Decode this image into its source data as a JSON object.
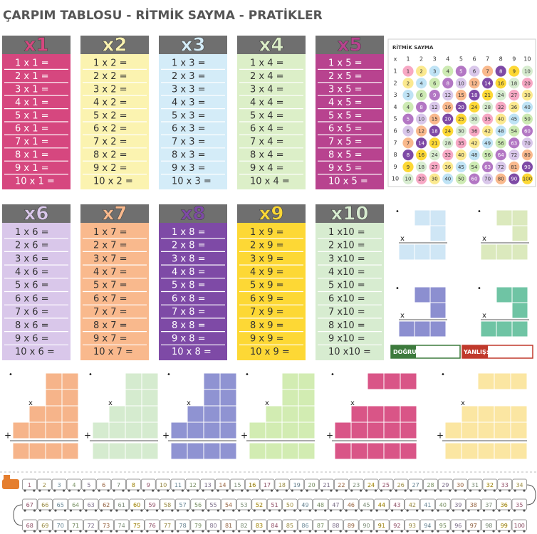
{
  "title": "ÇARPIM TABLOSU - RİTMİK SAYMA - PRATİKLER",
  "tables": [
    {
      "header": "x1",
      "rows": [
        "1 x 1 =",
        "2 x 1 =",
        "3 x 1 =",
        "4 x 1 =",
        "5 x 1 =",
        "6 x 1 =",
        "7 x 1 =",
        "8 x 1 =",
        "9 x 1 =",
        "10 x 1 ="
      ]
    },
    {
      "header": "x2",
      "rows": [
        "1 x 2 =",
        "2 x 2 =",
        "3 x 2 =",
        "4 x 2 =",
        "5 x 2 =",
        "6 x 2 =",
        "7 x 2 =",
        "8 x 2 =",
        "9 x 2 =",
        "10 x 2 ="
      ]
    },
    {
      "header": "x3",
      "rows": [
        "1 x 3 =",
        "2 x 3 =",
        "3 x 3 =",
        "4 x 3 =",
        "5 x 3 =",
        "6 x 3 =",
        "7 x 3 =",
        "8 x 3 =",
        "9 x 3 =",
        "10 x 3 ="
      ]
    },
    {
      "header": "x4",
      "rows": [
        "1 x 4 =",
        "2 x 4 =",
        "3 x 4 =",
        "4 x 4 =",
        "5 x 4 =",
        "6 x 4 =",
        "7 x 4 =",
        "8 x 4 =",
        "9 x 4 =",
        "10 x 4 ="
      ]
    },
    {
      "header": "x5",
      "rows": [
        "1 x 5 =",
        "2 x 5 =",
        "3 x 5 =",
        "4 x 5 =",
        "5 x 5 =",
        "6 x 5 =",
        "7 x 5 =",
        "8 x 5 =",
        "9 x 5 =",
        "10 x 5 ="
      ]
    },
    {
      "header": "x6",
      "rows": [
        "1 x 6 =",
        "2 x 6 =",
        "3 x 6 =",
        "4 x 6 =",
        "5 x 6 =",
        "6 x 6 =",
        "7 x 6 =",
        "8 x 6 =",
        "9 x 6 =",
        "10 x 6 ="
      ]
    },
    {
      "header": "x7",
      "rows": [
        "1 x 7 =",
        "2 x 7 =",
        "3 x 7 =",
        "4 x 7 =",
        "5 x 7 =",
        "6 x 7 =",
        "7 x 7 =",
        "8 x 7 =",
        "9 x 7 =",
        "10 x 7 ="
      ]
    },
    {
      "header": "x8",
      "rows": [
        "1 x 8 =",
        "2 x 8 =",
        "3 x 8 =",
        "4 x 8 =",
        "5 x 8 =",
        "6 x 8 =",
        "7 x 8 =",
        "8 x 8 =",
        "9 x 8 =",
        "10 x 8 ="
      ]
    },
    {
      "header": "x9",
      "rows": [
        "1 x 9 =",
        "2 x 9 =",
        "3 x 9 =",
        "4 x 9 =",
        "5 x 9 =",
        "6 x 9 =",
        "7 x 9 =",
        "8 x 9 =",
        "9 x 9 =",
        "10 x 9 ="
      ]
    },
    {
      "header": "x10",
      "rows": [
        "1 x10 =",
        "2 x10 =",
        "3 x10 =",
        "4 x10 =",
        "5 x10 =",
        "6 x10 =",
        "7 x10 =",
        "8 x10 =",
        "9 x10 =",
        "10 x10 ="
      ]
    }
  ],
  "grid": {
    "title": "RİTMİK SAYMA",
    "corner": "x",
    "columns": [
      1,
      2,
      3,
      4,
      5,
      6,
      7,
      8,
      9,
      10
    ],
    "row_labels": [
      1,
      2,
      3,
      4,
      5,
      6,
      7,
      8,
      9,
      10
    ],
    "cells": [
      [
        1,
        2,
        3,
        4,
        5,
        6,
        7,
        8,
        9,
        10
      ],
      [
        2,
        4,
        6,
        8,
        10,
        12,
        14,
        16,
        18,
        20
      ],
      [
        3,
        6,
        9,
        12,
        15,
        18,
        21,
        24,
        27,
        30
      ],
      [
        4,
        8,
        12,
        16,
        20,
        24,
        28,
        32,
        36,
        40
      ],
      [
        5,
        10,
        15,
        20,
        25,
        30,
        35,
        40,
        45,
        50
      ],
      [
        6,
        12,
        18,
        24,
        30,
        36,
        42,
        48,
        54,
        60
      ],
      [
        7,
        14,
        21,
        28,
        35,
        42,
        49,
        56,
        63,
        70
      ],
      [
        8,
        16,
        24,
        32,
        40,
        48,
        56,
        64,
        72,
        80
      ],
      [
        9,
        18,
        27,
        36,
        45,
        54,
        63,
        72,
        81,
        90
      ],
      [
        10,
        20,
        30,
        40,
        50,
        60,
        70,
        80,
        90,
        100
      ]
    ]
  },
  "practice": {
    "dot": "•",
    "times": "x",
    "plus": "+",
    "correct": "DOĞRU:",
    "wrong": "YANLIŞ:"
  },
  "train": {
    "rows": [
      [
        1,
        2,
        3,
        4,
        5,
        6,
        7,
        8,
        9,
        10,
        11,
        12,
        13,
        14,
        15,
        16,
        17,
        18,
        19,
        20,
        21,
        22,
        23,
        24,
        25,
        26,
        27,
        28,
        29,
        30,
        31,
        32,
        33,
        34
      ],
      [
        67,
        66,
        65,
        64,
        63,
        62,
        61,
        60,
        59,
        58,
        57,
        56,
        55,
        54,
        53,
        52,
        51,
        50,
        49,
        48,
        47,
        46,
        45,
        44,
        43,
        42,
        41,
        40,
        39,
        38,
        37,
        36,
        35
      ],
      [
        68,
        69,
        70,
        71,
        72,
        73,
        74,
        75,
        76,
        77,
        78,
        79,
        80,
        81,
        82,
        83,
        84,
        85,
        86,
        87,
        88,
        89,
        90,
        91,
        92,
        93,
        94,
        95,
        96,
        97,
        98,
        99,
        100
      ]
    ]
  }
}
